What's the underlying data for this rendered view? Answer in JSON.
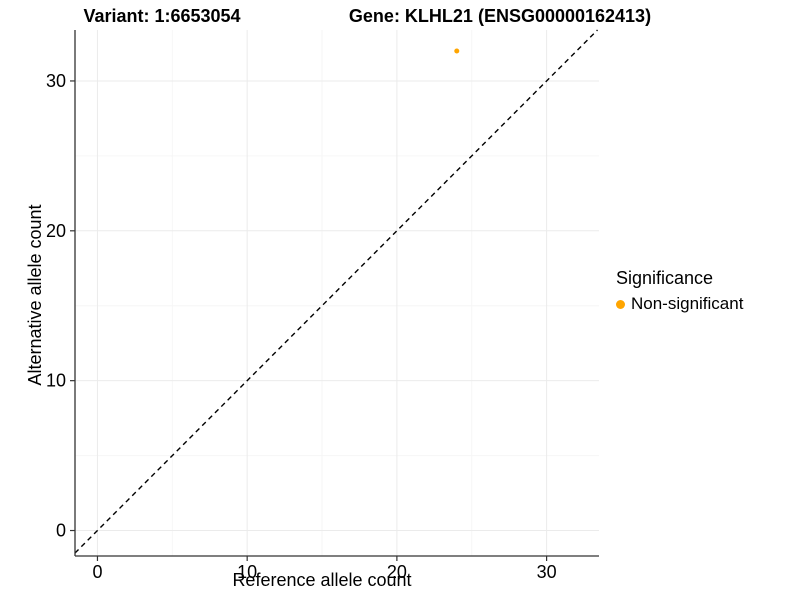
{
  "titles": {
    "variant": "Variant: 1:6653054",
    "gene": "Gene: KLHL21 (ENSG00000162413)"
  },
  "legend": {
    "title": "Significance",
    "items": [
      {
        "label": "Non-significant",
        "color": "#FFA500"
      }
    ]
  },
  "colors": {
    "point": "#FFA500",
    "grid_major": "#EBEBEB",
    "grid_minor": "#F6F6F6",
    "axis_line": "#333333",
    "tick_mark": "#333333",
    "text": "#000000",
    "reference_line": "#000000",
    "background": "#FFFFFF"
  },
  "chart_data": {
    "type": "scatter",
    "title": "Variant: 1:6653054 — Gene: KLHL21 (ENSG00000162413)",
    "xlabel": "Reference allele count",
    "ylabel": "Alternative allele count",
    "xlim": [
      -1.5,
      33.5
    ],
    "ylim": [
      -1.7,
      33.4
    ],
    "x_ticks": [
      0,
      10,
      20,
      30
    ],
    "y_ticks": [
      0,
      10,
      20,
      30
    ],
    "grid": "on",
    "legend_position": "right",
    "reference_line": {
      "type": "identity",
      "style": "dashed"
    },
    "series": [
      {
        "name": "Non-significant",
        "color": "#FFA500",
        "points": [
          {
            "x": 24,
            "y": 32
          }
        ]
      }
    ]
  }
}
